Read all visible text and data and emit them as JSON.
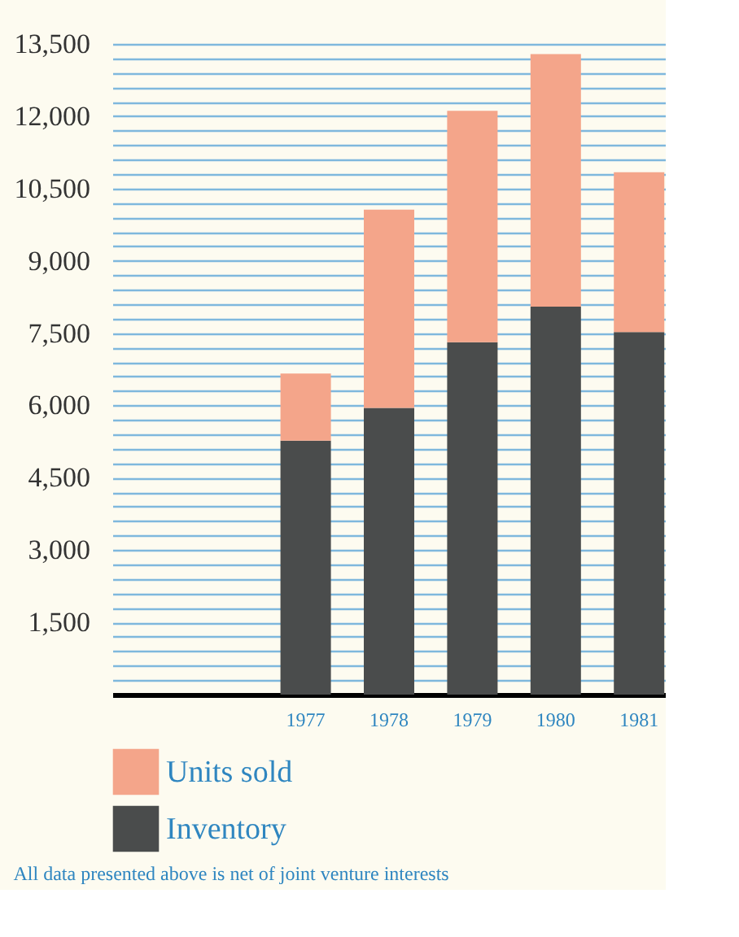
{
  "chart_data": {
    "type": "bar",
    "stacked": true,
    "categories": [
      "1977",
      "1978",
      "1979",
      "1980",
      "1981"
    ],
    "series": [
      {
        "name": "Inventory",
        "color": "#4a4c4c",
        "values": [
          5270,
          5950,
          7310,
          8050,
          7520
        ]
      },
      {
        "name": "Units sold",
        "color": "#f4a58a",
        "values": [
          1390,
          4110,
          4800,
          5240,
          3320
        ]
      }
    ],
    "ylim": [
      0,
      13500
    ],
    "yticks": [
      {
        "value": 0,
        "label": null
      },
      {
        "value": 300,
        "label": null
      },
      {
        "value": 600,
        "label": null
      },
      {
        "value": 900,
        "label": null
      },
      {
        "value": 1200,
        "label": null
      },
      {
        "value": 1500,
        "label": "1,500"
      },
      {
        "value": 1800,
        "label": null
      },
      {
        "value": 2100,
        "label": null
      },
      {
        "value": 2400,
        "label": null
      },
      {
        "value": 2700,
        "label": null
      },
      {
        "value": 3000,
        "label": "3,000"
      },
      {
        "value": 3300,
        "label": null
      },
      {
        "value": 3600,
        "label": null
      },
      {
        "value": 3900,
        "label": null
      },
      {
        "value": 4200,
        "label": null
      },
      {
        "value": 4500,
        "label": "4,500"
      },
      {
        "value": 4800,
        "label": null
      },
      {
        "value": 5100,
        "label": null
      },
      {
        "value": 5400,
        "label": null
      },
      {
        "value": 5700,
        "label": null
      },
      {
        "value": 6000,
        "label": "6,000"
      },
      {
        "value": 6300,
        "label": null
      },
      {
        "value": 6600,
        "label": null
      },
      {
        "value": 6900,
        "label": null
      },
      {
        "value": 7200,
        "label": null
      },
      {
        "value": 7500,
        "label": "7,500"
      },
      {
        "value": 7800,
        "label": null
      },
      {
        "value": 8100,
        "label": null
      },
      {
        "value": 8400,
        "label": null
      },
      {
        "value": 8700,
        "label": null
      },
      {
        "value": 9000,
        "label": "9,000"
      },
      {
        "value": 9300,
        "label": null
      },
      {
        "value": 9600,
        "label": null
      },
      {
        "value": 9900,
        "label": null
      },
      {
        "value": 10200,
        "label": null
      },
      {
        "value": 10500,
        "label": "10,500"
      },
      {
        "value": 10800,
        "label": null
      },
      {
        "value": 11100,
        "label": null
      },
      {
        "value": 11400,
        "label": null
      },
      {
        "value": 11700,
        "label": null
      },
      {
        "value": 12000,
        "label": "12,000"
      },
      {
        "value": 12300,
        "label": null
      },
      {
        "value": 12600,
        "label": null
      },
      {
        "value": 12900,
        "label": null
      },
      {
        "value": 13200,
        "label": null
      },
      {
        "value": 13500,
        "label": "13,500"
      }
    ],
    "grid": "y",
    "legend": "bottom left",
    "annotations": [
      "All data presented above is net of joint venture interests"
    ]
  }
}
